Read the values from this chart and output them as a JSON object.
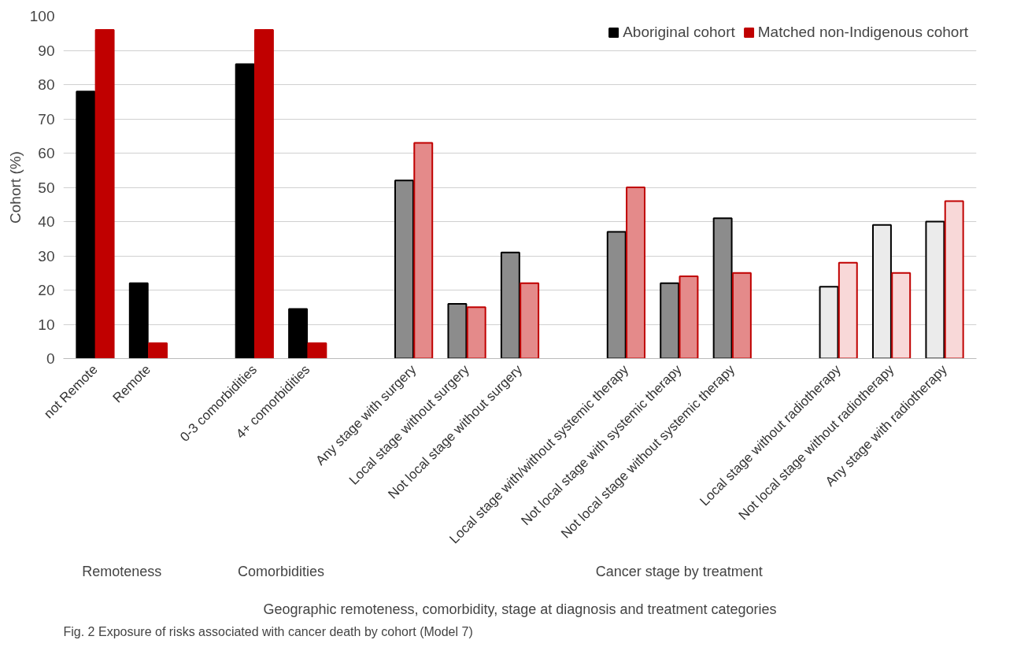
{
  "chart_data": {
    "type": "bar",
    "xlabel": "Geographic remoteness, comorbidity, stage at diagnosis and treatment categories",
    "ylabel": "Cohort (%)",
    "categories": [
      "not Remote",
      "Remote",
      null,
      "0-3 comorbidities",
      "4+ comorbidities",
      null,
      "Any stage with surgery",
      "Local stage without surgery",
      "Not local stage without surgery",
      null,
      "Local stage with/without systemic therapy",
      "Not local stage with systemic therapy",
      "Not local stage without systemic therapy",
      null,
      "Local stage without radiotherapy",
      "Not local stage without radiotherapy",
      "Any stage with radiotherapy"
    ],
    "series": [
      {
        "name": "Aboriginal cohort",
        "color": "#000000",
        "colors": [
          "#000000",
          "#000000",
          null,
          "#000000",
          "#000000",
          null,
          "#8c8c8c",
          "#8c8c8c",
          "#8c8c8c",
          null,
          "#8c8c8c",
          "#8c8c8c",
          "#8c8c8c",
          null,
          "#ebebeb",
          "#ebebeb",
          "#ebebeb"
        ],
        "values": [
          78,
          22,
          null,
          86,
          14.5,
          null,
          52,
          16,
          31,
          null,
          37,
          22,
          41,
          null,
          21,
          39,
          40
        ]
      },
      {
        "name": "Matched non-Indigenous cohort",
        "color": "#c00000",
        "colors": [
          "#c00000",
          "#c00000",
          null,
          "#c00000",
          "#c00000",
          null,
          "#e48a8a",
          "#e48a8a",
          "#e48a8a",
          null,
          "#e48a8a",
          "#e48a8a",
          "#e48a8a",
          null,
          "#f8d8d8",
          "#f8d8d8",
          "#f8d8d8"
        ],
        "values": [
          96,
          4.5,
          null,
          96,
          4.5,
          null,
          63,
          15,
          22,
          null,
          50,
          24,
          25,
          null,
          28,
          25,
          46
        ]
      }
    ],
    "ylim": [
      0,
      100
    ],
    "yticks": [
      0,
      10,
      20,
      30,
      40,
      50,
      60,
      70,
      80,
      90,
      100
    ],
    "grid": "y",
    "legend": "top right",
    "annotations": [
      "Remoteness",
      "Comorbidities",
      "Cancer stage by treatment",
      "Fig. 2 Exposure of risks associated with cancer death by cohort (Model 7)"
    ]
  }
}
